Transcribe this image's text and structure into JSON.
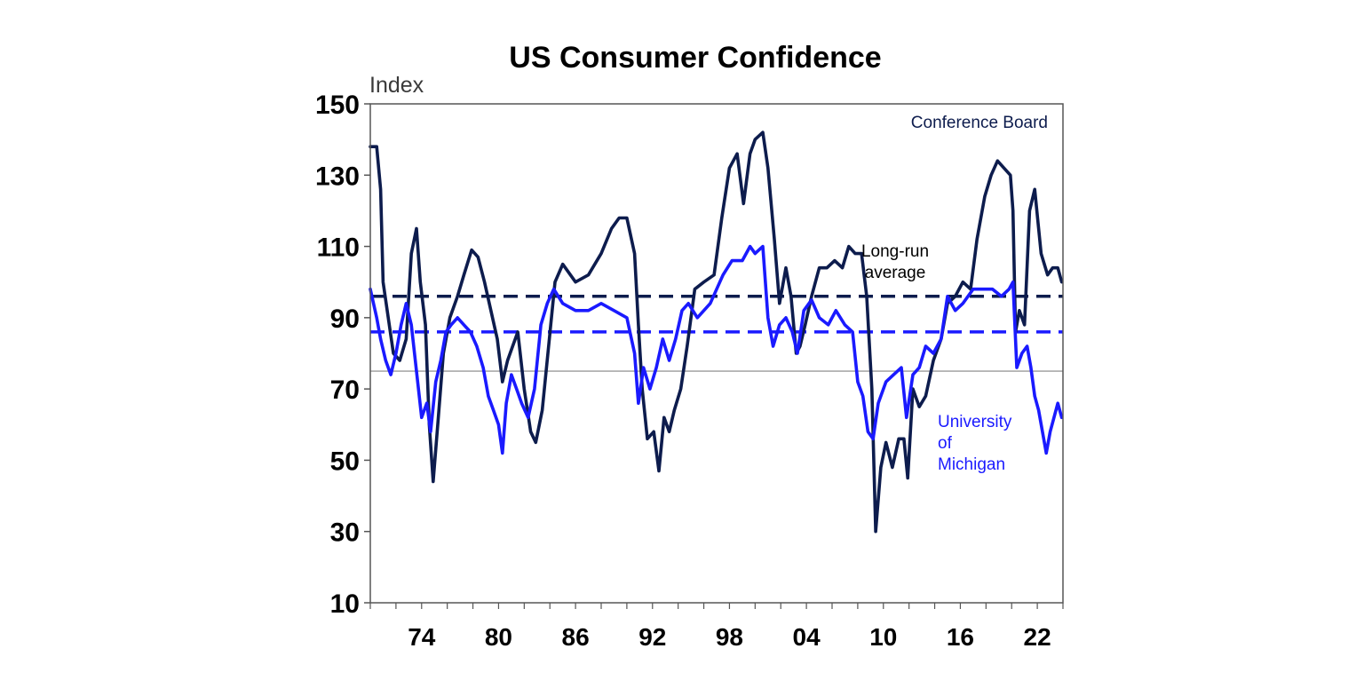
{
  "chart_data": {
    "type": "line",
    "title": "US Consumer Confidence",
    "ylabel": "Index",
    "xlabel": "",
    "ylim": [
      10,
      150
    ],
    "xlim": [
      1970.0,
      2024.0
    ],
    "yticks": [
      "150",
      "130",
      "110",
      "90",
      "70",
      "50",
      "30",
      "10"
    ],
    "xticks": [
      "74",
      "80",
      "86",
      "92",
      "98",
      "04",
      "10",
      "16",
      "22"
    ],
    "xtick_years": [
      1974,
      1980,
      1986,
      1992,
      1998,
      2004,
      2010,
      2016,
      2022
    ],
    "reference_line": 75,
    "colors": {
      "conference_board": "#0d1c4d",
      "michigan": "#1a1aff",
      "reference": "#9a9a9a",
      "frame": "#555555"
    },
    "annotations": {
      "conference_board": "Conference Board",
      "long_run_line1": "Long-run",
      "long_run_line2": "average",
      "michigan_line1": "University",
      "michigan_line2": "of",
      "michigan_line3": "Michigan"
    },
    "series": [
      {
        "name": "Conference Board",
        "color": "#0d1c4d",
        "long_run_average": 96,
        "x": [
          1970.0,
          1970.5,
          1970.8,
          1971.0,
          1971.4,
          1971.8,
          1972.3,
          1972.8,
          1973.2,
          1973.6,
          1973.9,
          1974.3,
          1974.6,
          1974.9,
          1975.3,
          1975.7,
          1976.2,
          1976.8,
          1977.3,
          1977.9,
          1978.4,
          1978.9,
          1979.4,
          1979.9,
          1980.3,
          1980.7,
          1981.1,
          1981.5,
          1982.0,
          1982.5,
          1982.9,
          1983.4,
          1983.9,
          1984.4,
          1985.0,
          1986.0,
          1987.0,
          1988.0,
          1988.8,
          1989.4,
          1990.0,
          1990.6,
          1990.9,
          1991.2,
          1991.6,
          1992.1,
          1992.5,
          1992.9,
          1993.3,
          1993.7,
          1994.2,
          1994.7,
          1995.3,
          1996.0,
          1996.8,
          1997.4,
          1998.0,
          1998.6,
          1999.1,
          1999.6,
          2000.0,
          2000.6,
          2001.0,
          2001.5,
          2001.9,
          2002.4,
          2002.8,
          2003.2,
          2003.5,
          2003.9,
          2004.4,
          2005.0,
          2005.6,
          2006.2,
          2006.8,
          2007.3,
          2007.8,
          2008.3,
          2008.7,
          2009.1,
          2009.4,
          2009.8,
          2010.2,
          2010.7,
          2011.2,
          2011.6,
          2011.9,
          2012.3,
          2012.8,
          2013.3,
          2013.9,
          2014.5,
          2015.0,
          2015.6,
          2016.2,
          2016.8,
          2017.3,
          2017.9,
          2018.4,
          2018.9,
          2019.4,
          2019.9,
          2020.1,
          2020.3,
          2020.6,
          2021.0,
          2021.4,
          2021.8,
          2022.3,
          2022.8,
          2023.2,
          2023.6,
          2023.9
        ],
        "values": [
          138,
          138,
          126,
          100,
          90,
          80,
          78,
          84,
          108,
          115,
          100,
          88,
          60,
          44,
          62,
          80,
          90,
          96,
          102,
          109,
          107,
          100,
          92,
          84,
          72,
          78,
          82,
          86,
          70,
          58,
          55,
          64,
          82,
          100,
          105,
          100,
          102,
          108,
          115,
          118,
          118,
          108,
          88,
          70,
          56,
          58,
          47,
          62,
          58,
          64,
          70,
          82,
          98,
          100,
          102,
          118,
          132,
          136,
          122,
          136,
          140,
          142,
          132,
          112,
          94,
          104,
          96,
          80,
          82,
          88,
          96,
          104,
          104,
          106,
          104,
          110,
          108,
          108,
          96,
          70,
          30,
          48,
          55,
          48,
          56,
          56,
          45,
          70,
          65,
          68,
          78,
          84,
          94,
          96,
          100,
          98,
          112,
          124,
          130,
          134,
          132,
          130,
          120,
          86,
          92,
          88,
          120,
          126,
          108,
          102,
          104,
          104,
          100
        ]
      },
      {
        "name": "University of Michigan",
        "color": "#1a1aff",
        "long_run_average": 86,
        "x": [
          1970.0,
          1970.5,
          1970.8,
          1971.2,
          1971.6,
          1972.0,
          1972.4,
          1972.8,
          1973.2,
          1973.6,
          1974.0,
          1974.4,
          1974.7,
          1975.1,
          1975.5,
          1975.9,
          1976.3,
          1976.8,
          1977.3,
          1977.8,
          1978.3,
          1978.8,
          1979.2,
          1979.6,
          1980.0,
          1980.3,
          1980.6,
          1981.0,
          1981.4,
          1981.8,
          1982.3,
          1982.8,
          1983.3,
          1983.8,
          1984.3,
          1985.0,
          1986.0,
          1987.0,
          1988.0,
          1989.0,
          1990.0,
          1990.6,
          1990.9,
          1991.3,
          1991.8,
          1992.3,
          1992.8,
          1993.3,
          1993.8,
          1994.3,
          1994.8,
          1995.5,
          1996.5,
          1997.5,
          1998.2,
          1999.0,
          1999.6,
          2000.0,
          2000.6,
          2001.0,
          2001.4,
          2001.9,
          2002.4,
          2002.9,
          2003.3,
          2003.8,
          2004.4,
          2005.0,
          2005.7,
          2006.3,
          2007.0,
          2007.6,
          2008.0,
          2008.4,
          2008.8,
          2009.2,
          2009.6,
          2010.2,
          2010.8,
          2011.4,
          2011.8,
          2012.3,
          2012.8,
          2013.3,
          2013.9,
          2014.5,
          2015.0,
          2015.6,
          2016.2,
          2017.0,
          2017.8,
          2018.5,
          2019.2,
          2019.8,
          2020.1,
          2020.4,
          2020.8,
          2021.2,
          2021.5,
          2021.8,
          2022.1,
          2022.4,
          2022.7,
          2023.0,
          2023.3,
          2023.6,
          2023.9
        ],
        "values": [
          98,
          90,
          84,
          78,
          74,
          80,
          88,
          94,
          88,
          75,
          62,
          66,
          58,
          72,
          78,
          86,
          88,
          90,
          88,
          86,
          82,
          76,
          68,
          64,
          60,
          52,
          66,
          74,
          70,
          66,
          62,
          70,
          88,
          94,
          98,
          94,
          92,
          92,
          94,
          92,
          90,
          80,
          66,
          76,
          70,
          76,
          84,
          78,
          84,
          92,
          94,
          90,
          94,
          102,
          106,
          106,
          110,
          108,
          110,
          90,
          82,
          88,
          90,
          86,
          80,
          92,
          95,
          90,
          88,
          92,
          88,
          86,
          72,
          68,
          58,
          56,
          66,
          72,
          74,
          76,
          62,
          74,
          76,
          82,
          80,
          84,
          96,
          92,
          94,
          98,
          98,
          98,
          96,
          98,
          100,
          76,
          80,
          82,
          76,
          68,
          64,
          58,
          52,
          58,
          62,
          66,
          62
        ]
      }
    ]
  }
}
